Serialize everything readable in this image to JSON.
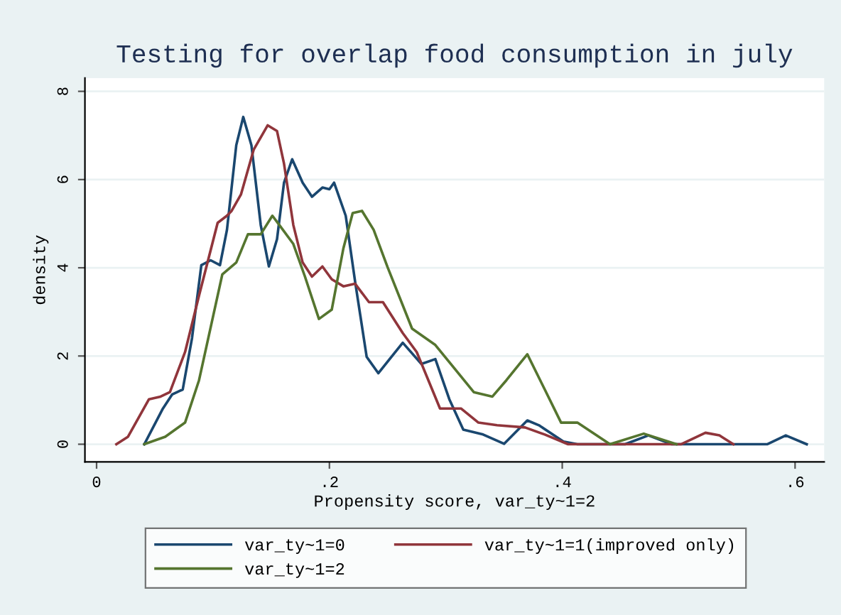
{
  "chart_data": {
    "type": "line",
    "title": "Testing for overlap food consumption in july",
    "xlabel": "Propensity score, var_ty~1=2",
    "ylabel": "density",
    "xlim": [
      -0.01,
      0.625
    ],
    "ylim": [
      -0.4,
      8.3
    ],
    "xticks": [
      0,
      {
        "value": 0.2,
        "label": ".2"
      },
      {
        "value": 0.4,
        "label": ".4"
      },
      {
        "value": 0.6,
        "label": ".6"
      }
    ],
    "yticks": [
      0,
      2,
      4,
      6,
      8
    ],
    "grid": "y",
    "legend": "bottom",
    "series": [
      {
        "name": "var_ty~1=0",
        "color": "#1a476f",
        "x": [
          0.041,
          0.057,
          0.065,
          0.074,
          0.082,
          0.09,
          0.098,
          0.106,
          0.112,
          0.12,
          0.126,
          0.133,
          0.141,
          0.148,
          0.155,
          0.161,
          0.168,
          0.177,
          0.185,
          0.194,
          0.2,
          0.204,
          0.214,
          0.222,
          0.232,
          0.242,
          0.263,
          0.279,
          0.291,
          0.303,
          0.315,
          0.332,
          0.35,
          0.37,
          0.38,
          0.401,
          0.413,
          0.454,
          0.474,
          0.494,
          0.576,
          0.592,
          0.61
        ],
        "values": [
          0,
          0.81,
          1.13,
          1.24,
          2.41,
          4.06,
          4.17,
          4.06,
          4.86,
          6.78,
          7.42,
          6.78,
          4.97,
          4.03,
          4.65,
          5.93,
          6.46,
          5.93,
          5.61,
          5.82,
          5.78,
          5.93,
          5.18,
          3.7,
          1.98,
          1.61,
          2.3,
          1.82,
          1.93,
          1.02,
          0.33,
          0.22,
          0.01,
          0.54,
          0.43,
          0.06,
          0,
          0,
          0.2,
          0,
          0,
          0.2,
          0
        ]
      },
      {
        "name": "var_ty~1=1(improved only)",
        "color": "#90353b",
        "x": [
          0.017,
          0.027,
          0.045,
          0.055,
          0.063,
          0.076,
          0.088,
          0.104,
          0.112,
          0.116,
          0.124,
          0.135,
          0.147,
          0.155,
          0.161,
          0.169,
          0.177,
          0.185,
          0.194,
          0.202,
          0.212,
          0.222,
          0.234,
          0.246,
          0.263,
          0.275,
          0.295,
          0.313,
          0.328,
          0.344,
          0.368,
          0.385,
          0.405,
          0.502,
          0.523,
          0.535,
          0.547
        ],
        "values": [
          0,
          0.17,
          1.02,
          1.08,
          1.18,
          2.09,
          3.37,
          5.02,
          5.18,
          5.29,
          5.66,
          6.68,
          7.23,
          7.1,
          6.36,
          4.97,
          4.12,
          3.8,
          4.03,
          3.74,
          3.58,
          3.64,
          3.22,
          3.22,
          2.52,
          2.09,
          0.81,
          0.81,
          0.49,
          0.43,
          0.38,
          0.22,
          0,
          0,
          0.26,
          0.2,
          0
        ]
      },
      {
        "name": "var_ty~1=2",
        "color": "#55752f",
        "x": [
          0.041,
          0.059,
          0.076,
          0.088,
          0.108,
          0.12,
          0.13,
          0.141,
          0.151,
          0.157,
          0.169,
          0.179,
          0.191,
          0.202,
          0.212,
          0.22,
          0.228,
          0.238,
          0.25,
          0.271,
          0.291,
          0.324,
          0.34,
          0.352,
          0.37,
          0.385,
          0.399,
          0.413,
          0.441,
          0.47,
          0.498
        ],
        "values": [
          0,
          0.17,
          0.49,
          1.45,
          3.85,
          4.12,
          4.76,
          4.76,
          5.18,
          4.97,
          4.54,
          3.8,
          2.84,
          3.05,
          4.44,
          5.24,
          5.29,
          4.86,
          4.01,
          2.62,
          2.25,
          1.18,
          1.08,
          1.45,
          2.04,
          1.24,
          0.49,
          0.49,
          0,
          0.24,
          0
        ]
      }
    ]
  }
}
